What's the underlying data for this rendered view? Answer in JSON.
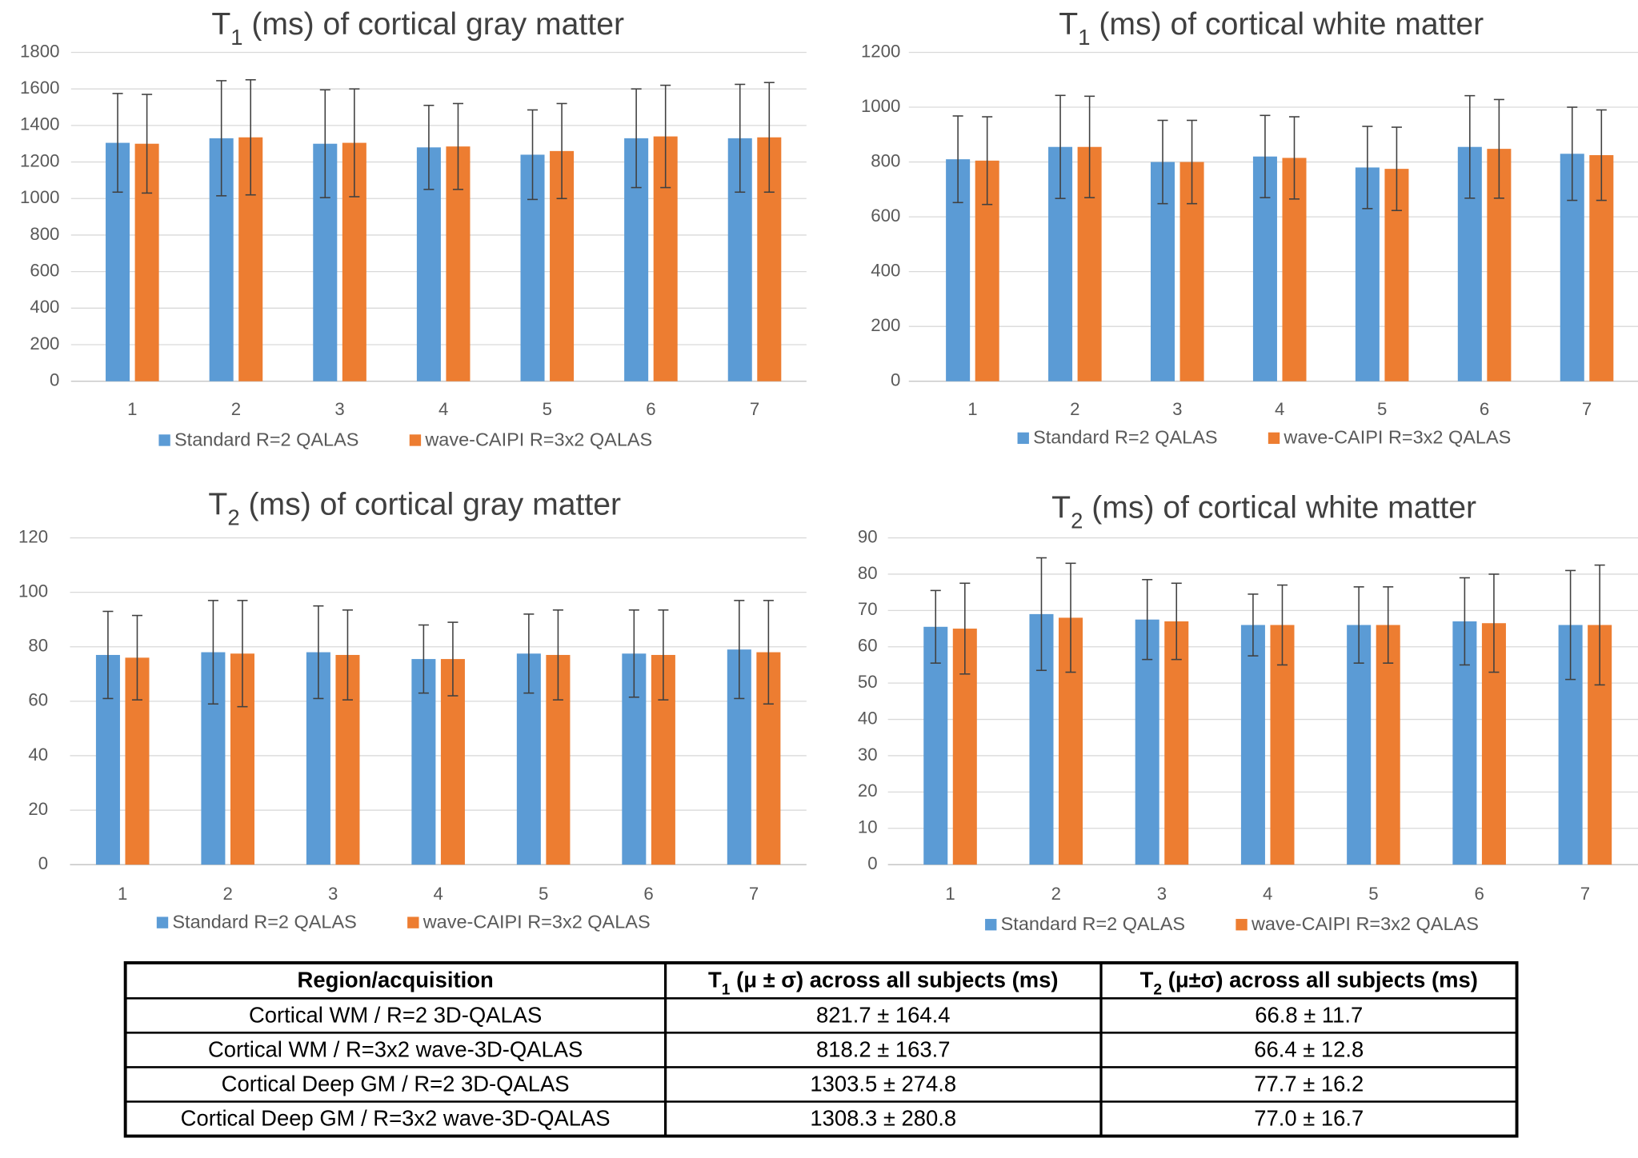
{
  "charts": [
    {
      "type": "bar",
      "title": [
        "T",
        "1",
        " (ms) of cortical gray matter"
      ],
      "categories": [
        "1",
        "2",
        "3",
        "4",
        "5",
        "6",
        "7"
      ],
      "series": [
        {
          "name": "Standard R=2 QALAS",
          "color": "#5b9bd5",
          "values": [
            1305,
            1330,
            1300,
            1280,
            1240,
            1330,
            1330
          ],
          "errors": [
            270,
            315,
            295,
            230,
            245,
            270,
            295
          ]
        },
        {
          "name": "wave-CAIPI R=3x2 QALAS",
          "color": "#ed7d31",
          "values": [
            1300,
            1335,
            1305,
            1285,
            1260,
            1340,
            1335
          ],
          "errors": [
            270,
            315,
            295,
            235,
            260,
            280,
            300
          ]
        }
      ],
      "ylim": [
        0,
        1800
      ],
      "yticks": [
        0,
        200,
        400,
        600,
        800,
        1000,
        1200,
        1400,
        1600,
        1800
      ],
      "grid": true
    },
    {
      "type": "bar",
      "title": [
        "T",
        "1",
        " (ms) of cortical white matter"
      ],
      "categories": [
        "1",
        "2",
        "3",
        "4",
        "5",
        "6",
        "7"
      ],
      "series": [
        {
          "name": "Standard R=2 QALAS",
          "color": "#5b9bd5",
          "values": [
            810,
            855,
            800,
            820,
            780,
            855,
            830
          ],
          "errors": [
            158,
            188,
            152,
            150,
            150,
            187,
            170
          ]
        },
        {
          "name": "wave-CAIPI R=3x2 QALAS",
          "color": "#ed7d31",
          "values": [
            805,
            855,
            800,
            815,
            775,
            848,
            825
          ],
          "errors": [
            160,
            185,
            152,
            150,
            152,
            180,
            165
          ]
        }
      ],
      "ylim": [
        0,
        1200
      ],
      "yticks": [
        0,
        200,
        400,
        600,
        800,
        1000,
        1200
      ],
      "grid": true
    },
    {
      "type": "bar",
      "title": [
        "T",
        "2",
        " (ms) of cortical gray matter"
      ],
      "categories": [
        "1",
        "2",
        "3",
        "4",
        "5",
        "6",
        "7"
      ],
      "series": [
        {
          "name": "Standard R=2 QALAS",
          "color": "#5b9bd5",
          "values": [
            77,
            78,
            78,
            75.5,
            77.5,
            77.5,
            79
          ],
          "errors": [
            16,
            19,
            17,
            12.5,
            14.5,
            16,
            18
          ]
        },
        {
          "name": "wave-CAIPI R=3x2 QALAS",
          "color": "#ed7d31",
          "values": [
            76,
            77.5,
            77,
            75.5,
            77,
            77,
            78
          ],
          "errors": [
            15.5,
            19.5,
            16.5,
            13.5,
            16.5,
            16.5,
            19
          ]
        }
      ],
      "ylim": [
        0,
        120
      ],
      "yticks": [
        0,
        20,
        40,
        60,
        80,
        100,
        120
      ],
      "grid": true
    },
    {
      "type": "bar",
      "title": [
        "T",
        "2",
        " (ms) of cortical white matter"
      ],
      "categories": [
        "1",
        "2",
        "3",
        "4",
        "5",
        "6",
        "7"
      ],
      "series": [
        {
          "name": "Standard R=2 QALAS",
          "color": "#5b9bd5",
          "values": [
            65.5,
            69,
            67.5,
            66,
            66,
            67,
            66
          ],
          "errors": [
            10,
            15.5,
            11,
            8.5,
            10.5,
            12,
            15
          ]
        },
        {
          "name": "wave-CAIPI R=3x2 QALAS",
          "color": "#ed7d31",
          "values": [
            65,
            68,
            67,
            66,
            66,
            66.5,
            66
          ],
          "errors": [
            12.5,
            15,
            10.5,
            11,
            10.5,
            13.5,
            16.5
          ]
        }
      ],
      "ylim": [
        0,
        90
      ],
      "yticks": [
        0,
        10,
        20,
        30,
        40,
        50,
        60,
        70,
        80,
        90
      ],
      "grid": true
    }
  ],
  "table": {
    "header": [
      [
        "Region/acquisition"
      ],
      [
        "T",
        "1",
        " (μ ± σ) across all subjects (ms)"
      ],
      [
        "T",
        "2",
        " (μ±σ) across all subjects (ms)"
      ]
    ],
    "rows": [
      [
        "Cortical WM / R=2 3D-QALAS",
        "821.7 ± 164.4",
        "66.8 ± 11.7"
      ],
      [
        "Cortical WM / R=3x2 wave-3D-QALAS",
        "818.2 ± 163.7",
        "66.4 ± 12.8"
      ],
      [
        "Cortical Deep GM / R=2 3D-QALAS",
        "1303.5 ± 274.8",
        "77.7 ± 16.2"
      ],
      [
        "Cortical Deep GM / R=3x2 wave-3D-QALAS",
        "1308.3 ± 280.8",
        "77.0 ± 16.7"
      ]
    ]
  }
}
